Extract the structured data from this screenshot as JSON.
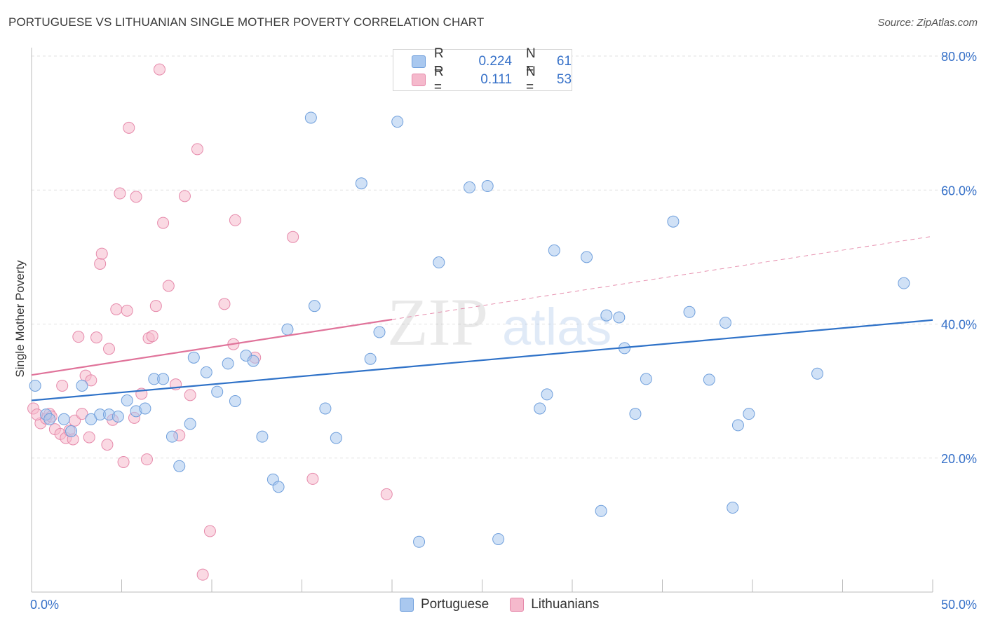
{
  "title": "PORTUGUESE VS LITHUANIAN SINGLE MOTHER POVERTY CORRELATION CHART",
  "source": "Source: ZipAtlas.com",
  "watermark": {
    "zip": "ZIP",
    "atlas": "atlas"
  },
  "legend_top": {
    "rows": [
      {
        "r_label": "R =",
        "r_value": "0.224",
        "n_label": "N =",
        "n_value": "61"
      },
      {
        "r_label": "R =",
        "r_value": "0.111",
        "n_label": "N =",
        "n_value": "53"
      }
    ]
  },
  "legend_bottom": {
    "items": [
      {
        "label": "Portuguese"
      },
      {
        "label": "Lithuanians"
      }
    ]
  },
  "colors": {
    "blue_fill": "#a9c8ef",
    "blue_stroke": "#6f9fdc",
    "blue_line": "#2f72c8",
    "pink_fill": "#f5b9cc",
    "pink_stroke": "#e68aab",
    "pink_line": "#e0739a",
    "tick_label": "#3570c8",
    "grid": "#e2e2e2"
  },
  "chart_data": {
    "type": "scatter",
    "title": "PORTUGUESE VS LITHUANIAN SINGLE MOTHER POVERTY CORRELATION CHART",
    "xlabel": "",
    "ylabel": "Single Mother Poverty",
    "xlim": [
      0,
      50
    ],
    "ylim": [
      0,
      80
    ],
    "x_tick_labels": [
      {
        "value": 0,
        "label": "0.0%"
      },
      {
        "value": 50,
        "label": "50.0%"
      }
    ],
    "y_tick_labels": [
      {
        "value": 20,
        "label": "20.0%"
      },
      {
        "value": 40,
        "label": "40.0%"
      },
      {
        "value": 60,
        "label": "60.0%"
      },
      {
        "value": 80,
        "label": "80.0%"
      }
    ],
    "series": [
      {
        "name": "Portuguese",
        "r": 0.224,
        "n": 61,
        "trend": {
          "x": [
            0,
            50
          ],
          "y": [
            28.6,
            40.6
          ],
          "dashed_from": null
        },
        "points": [
          [
            0.2,
            30.8
          ],
          [
            0.8,
            26.5
          ],
          [
            1.0,
            25.8
          ],
          [
            1.8,
            25.8
          ],
          [
            2.2,
            24.0
          ],
          [
            2.8,
            30.8
          ],
          [
            3.3,
            25.8
          ],
          [
            3.8,
            26.5
          ],
          [
            4.3,
            26.5
          ],
          [
            4.8,
            26.2
          ],
          [
            5.3,
            28.6
          ],
          [
            5.8,
            27.0
          ],
          [
            6.3,
            27.4
          ],
          [
            6.8,
            31.8
          ],
          [
            7.3,
            31.8
          ],
          [
            7.8,
            23.2
          ],
          [
            8.2,
            18.8
          ],
          [
            8.8,
            25.1
          ],
          [
            9.0,
            35.0
          ],
          [
            9.7,
            32.8
          ],
          [
            10.3,
            29.9
          ],
          [
            10.9,
            34.1
          ],
          [
            11.3,
            28.5
          ],
          [
            11.9,
            35.3
          ],
          [
            12.3,
            34.5
          ],
          [
            12.8,
            23.2
          ],
          [
            13.4,
            16.8
          ],
          [
            13.7,
            15.7
          ],
          [
            14.2,
            39.2
          ],
          [
            15.7,
            42.7
          ],
          [
            15.5,
            70.8
          ],
          [
            16.3,
            27.4
          ],
          [
            16.9,
            23.0
          ],
          [
            18.3,
            61.0
          ],
          [
            18.8,
            34.8
          ],
          [
            19.3,
            38.8
          ],
          [
            20.3,
            70.2
          ],
          [
            21.5,
            7.5
          ],
          [
            22.6,
            49.2
          ],
          [
            24.3,
            60.4
          ],
          [
            25.3,
            60.6
          ],
          [
            25.9,
            7.9
          ],
          [
            28.2,
            27.4
          ],
          [
            28.6,
            29.5
          ],
          [
            29.0,
            51.0
          ],
          [
            30.8,
            50.0
          ],
          [
            31.6,
            12.1
          ],
          [
            31.9,
            41.3
          ],
          [
            32.6,
            41.0
          ],
          [
            32.9,
            36.4
          ],
          [
            33.5,
            26.6
          ],
          [
            34.1,
            31.8
          ],
          [
            35.6,
            55.3
          ],
          [
            36.5,
            41.8
          ],
          [
            37.6,
            31.7
          ],
          [
            38.5,
            40.2
          ],
          [
            38.9,
            12.6
          ],
          [
            39.2,
            24.9
          ],
          [
            39.8,
            26.6
          ],
          [
            43.6,
            32.6
          ],
          [
            48.4,
            46.1
          ]
        ]
      },
      {
        "name": "Lithuanians",
        "r": 0.111,
        "n": 53,
        "trend": {
          "x": [
            0,
            50
          ],
          "y": [
            32.4,
            53.1
          ],
          "dashed_from": 20.0
        },
        "points": [
          [
            0.1,
            27.4
          ],
          [
            0.5,
            25.2
          ],
          [
            0.8,
            25.9
          ],
          [
            1.0,
            26.6
          ],
          [
            1.3,
            24.3
          ],
          [
            1.6,
            23.6
          ],
          [
            1.7,
            30.8
          ],
          [
            1.9,
            23.0
          ],
          [
            2.1,
            24.1
          ],
          [
            2.3,
            22.8
          ],
          [
            2.4,
            25.6
          ],
          [
            2.6,
            38.1
          ],
          [
            2.8,
            26.6
          ],
          [
            3.0,
            32.3
          ],
          [
            3.2,
            23.1
          ],
          [
            3.3,
            31.6
          ],
          [
            3.6,
            38.0
          ],
          [
            3.8,
            49.0
          ],
          [
            3.9,
            50.5
          ],
          [
            4.2,
            22.0
          ],
          [
            4.3,
            36.3
          ],
          [
            4.5,
            25.7
          ],
          [
            4.7,
            42.2
          ],
          [
            4.9,
            59.5
          ],
          [
            5.1,
            19.4
          ],
          [
            5.3,
            42.0
          ],
          [
            5.4,
            69.3
          ],
          [
            5.7,
            26.0
          ],
          [
            5.8,
            59.0
          ],
          [
            6.1,
            29.6
          ],
          [
            6.4,
            19.8
          ],
          [
            6.5,
            37.9
          ],
          [
            6.7,
            38.2
          ],
          [
            6.9,
            42.7
          ],
          [
            7.1,
            78.0
          ],
          [
            7.3,
            55.1
          ],
          [
            7.6,
            45.7
          ],
          [
            8.0,
            31.0
          ],
          [
            8.2,
            23.4
          ],
          [
            8.5,
            59.1
          ],
          [
            8.8,
            29.4
          ],
          [
            9.2,
            66.1
          ],
          [
            9.5,
            2.6
          ],
          [
            9.9,
            9.1
          ],
          [
            10.7,
            43.0
          ],
          [
            11.2,
            37.0
          ],
          [
            11.3,
            55.5
          ],
          [
            12.4,
            35.0
          ],
          [
            14.5,
            53.0
          ],
          [
            15.6,
            16.9
          ],
          [
            19.7,
            14.6
          ],
          [
            0.3,
            26.5
          ],
          [
            1.1,
            26.2
          ]
        ]
      }
    ]
  }
}
